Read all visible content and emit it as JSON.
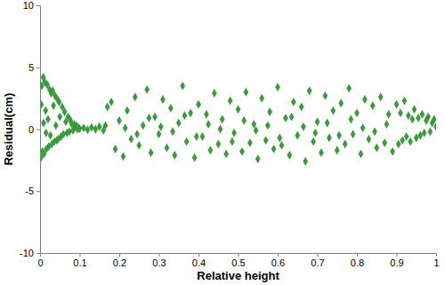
{
  "chart_data": {
    "type": "scatter",
    "x_label": "Relative height",
    "y_label": "Residual(cm)",
    "color": "#3a9b3a",
    "marker": "diamond",
    "xlim": [
      0,
      1
    ],
    "ylim": [
      -10,
      10
    ],
    "xticks": [
      0,
      0.1,
      0.2,
      0.3,
      0.4,
      0.5,
      0.6,
      0.7,
      0.8,
      0.9,
      1
    ],
    "yticks": [
      -10,
      -5,
      0,
      5,
      10
    ],
    "grid": false,
    "x": [
      0.002,
      0.004,
      0.006,
      0.008,
      0.01,
      0.012,
      0.014,
      0.016,
      0.018,
      0.02,
      0.022,
      0.024,
      0.026,
      0.028,
      0.03,
      0.032,
      0.034,
      0.036,
      0.038,
      0.04,
      0.042,
      0.044,
      0.046,
      0.048,
      0.05,
      0.053,
      0.056,
      0.059,
      0.062,
      0.065,
      0.068,
      0.071,
      0.074,
      0.077,
      0.08,
      0.083,
      0.086,
      0.089,
      0.092,
      0.095,
      0.098,
      0.1,
      0.003,
      0.009,
      0.015,
      0.11,
      0.12,
      0.13,
      0.14,
      0.15,
      0.16,
      0.165,
      0.17,
      0.18,
      0.19,
      0.2,
      0.21,
      0.22,
      0.23,
      0.24,
      0.25,
      0.26,
      0.27,
      0.28,
      0.29,
      0.3,
      0.31,
      0.32,
      0.33,
      0.34,
      0.35,
      0.36,
      0.37,
      0.38,
      0.39,
      0.4,
      0.41,
      0.42,
      0.43,
      0.44,
      0.45,
      0.46,
      0.47,
      0.48,
      0.49,
      0.5,
      0.51,
      0.52,
      0.53,
      0.54,
      0.55,
      0.56,
      0.57,
      0.58,
      0.59,
      0.6,
      0.61,
      0.62,
      0.63,
      0.64,
      0.65,
      0.66,
      0.67,
      0.68,
      0.69,
      0.7,
      0.71,
      0.72,
      0.73,
      0.74,
      0.75,
      0.76,
      0.77,
      0.78,
      0.79,
      0.8,
      0.81,
      0.82,
      0.83,
      0.84,
      0.85,
      0.86,
      0.87,
      0.88,
      0.89,
      0.215,
      0.245,
      0.275,
      0.305,
      0.335,
      0.365,
      0.395,
      0.425,
      0.455,
      0.485,
      0.515,
      0.545,
      0.575,
      0.605,
      0.635,
      0.665,
      0.695,
      0.725,
      0.755,
      0.785,
      0.815,
      0.845,
      0.875,
      0.9,
      0.905,
      0.91,
      0.915,
      0.92,
      0.925,
      0.93,
      0.935,
      0.94,
      0.945,
      0.95,
      0.955,
      0.96,
      0.965,
      0.97,
      0.975,
      0.98,
      0.985,
      0.99,
      0.995,
      1.0
    ],
    "values": [
      -2.3,
      3.5,
      -1.8,
      4.2,
      -2.0,
      3.8,
      1.5,
      -1.6,
      3.6,
      0.8,
      -1.4,
      3.2,
      -0.5,
      2.9,
      -1.2,
      3.1,
      1.9,
      -1.0,
      2.7,
      0.3,
      -0.9,
      2.4,
      -0.8,
      2.2,
      1.0,
      -0.6,
      1.8,
      -0.4,
      1.4,
      0.6,
      -0.3,
      1.0,
      -0.2,
      0.7,
      0.4,
      -0.1,
      0.4,
      0.2,
      0.3,
      0.0,
      0.1,
      0.05,
      2.0,
      0.5,
      -0.3,
      0.1,
      -0.05,
      0.15,
      0.0,
      0.2,
      -0.1,
      0.3,
      1.8,
      2.2,
      -1.6,
      0.7,
      -2.2,
      1.5,
      -0.8,
      2.6,
      -1.3,
      0.3,
      3.2,
      -1.9,
      1.0,
      -0.4,
      2.4,
      -1.5,
      1.7,
      -2.1,
      0.5,
      3.5,
      -1.0,
      1.3,
      -2.3,
      2.0,
      -0.6,
      1.2,
      -1.7,
      2.9,
      -1.2,
      0.8,
      -2.0,
      2.3,
      -0.3,
      1.6,
      -1.8,
      3.0,
      -1.1,
      0.4,
      -2.4,
      2.5,
      -0.9,
      1.4,
      -1.6,
      3.4,
      -1.3,
      0.9,
      -2.1,
      2.2,
      -0.5,
      1.8,
      -2.6,
      3.1,
      -1.0,
      0.6,
      -1.9,
      2.7,
      -0.7,
      1.5,
      -1.7,
      2.1,
      -1.2,
      3.3,
      -0.4,
      1.3,
      -2.0,
      2.4,
      -0.8,
      1.9,
      -1.5,
      2.6,
      -1.1,
      1.2,
      -1.8,
      0.1,
      -0.4,
      0.9,
      0.2,
      -0.2,
      1.1,
      -0.6,
      0.4,
      0.0,
      -1.0,
      0.7,
      -0.1,
      0.3,
      -0.7,
      1.0,
      0.2,
      -0.3,
      0.5,
      -0.5,
      0.8,
      0.1,
      -0.2,
      0.4,
      2.0,
      -1.2,
      1.3,
      -0.9,
      2.3,
      -0.6,
      1.1,
      -1.0,
      0.8,
      1.6,
      -0.7,
      0.9,
      -0.5,
      1.2,
      -0.3,
      0.7,
      1.0,
      -0.2,
      0.5,
      0.8,
      0.2
    ]
  }
}
